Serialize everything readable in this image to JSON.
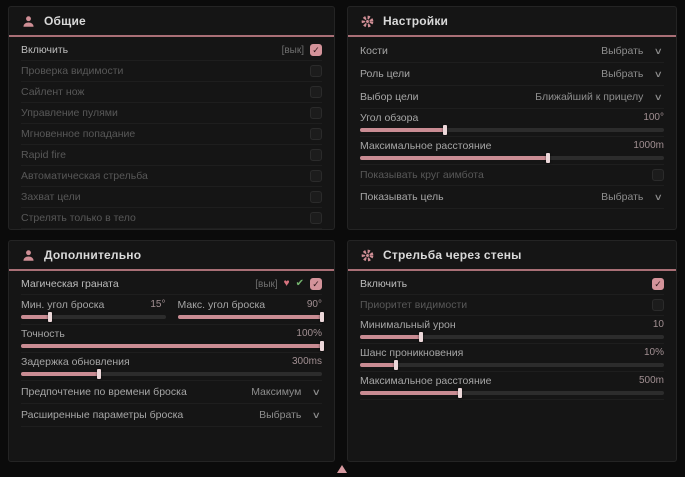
{
  "colors": {
    "accent": "#cf8e95",
    "header_underline": "#a96f76",
    "checkbox_checked": "#d4939a",
    "slider_fill": "#c98c93",
    "heart_icon": "#d8737f",
    "check_icon": "#74b56e"
  },
  "glyphs": {
    "check": "✓",
    "chevron": "∨",
    "heart": "♥",
    "leaf_check": "✔"
  },
  "panels": [
    {
      "title": "Общие",
      "icon": "person-icon",
      "rows": [
        {
          "type": "toggle",
          "label": "Включить",
          "tag": "[вык]",
          "checked": true,
          "dim": false
        },
        {
          "type": "toggle",
          "label": "Проверка видимости",
          "checked": false,
          "dim": true
        },
        {
          "type": "toggle",
          "label": "Сайлент нож",
          "checked": false,
          "dim": true
        },
        {
          "type": "toggle",
          "label": "Управление пулями",
          "checked": false,
          "dim": true
        },
        {
          "type": "toggle",
          "label": "Мгновенное попадание",
          "checked": false,
          "dim": true
        },
        {
          "type": "toggle",
          "label": "Rapid fire",
          "checked": false,
          "dim": true
        },
        {
          "type": "toggle",
          "label": "Автоматическая стрельба",
          "checked": false,
          "dim": true
        },
        {
          "type": "toggle",
          "label": "Захват цели",
          "checked": false,
          "dim": true
        },
        {
          "type": "toggle",
          "label": "Стрелять только в тело",
          "checked": false,
          "dim": true
        }
      ]
    },
    {
      "title": "Настройки",
      "icon": "gear-icon",
      "rows": [
        {
          "type": "dropdown",
          "label": "Кости",
          "value": "Выбрать"
        },
        {
          "type": "dropdown",
          "label": "Роль цели",
          "value": "Выбрать"
        },
        {
          "type": "dropdown",
          "label": "Выбор цели",
          "value": "Ближайший к прицелу"
        },
        {
          "type": "slider",
          "label": "Угол обзора",
          "value": "100°",
          "fill": 0.28
        },
        {
          "type": "slider",
          "label": "Максимальное расстояние",
          "value": "1000m",
          "fill": 0.62
        },
        {
          "type": "toggle",
          "label": "Показывать круг аимбота",
          "checked": false,
          "dim": true
        },
        {
          "type": "dropdown",
          "label": "Показывать цель",
          "value": "Выбрать"
        }
      ]
    },
    {
      "title": "Дополнительно",
      "icon": "person-icon",
      "rows": [
        {
          "type": "toggle",
          "label": "Магическая граната",
          "tag": "[вык]",
          "icons": [
            "heart-icon",
            "check-icon"
          ],
          "checked": true,
          "dim": false
        },
        {
          "type": "sliderpair",
          "items": [
            {
              "label": "Мин. угол броска",
              "value": "15°",
              "fill": 0.2
            },
            {
              "label": "Макс. угол броска",
              "value": "90°",
              "fill": 1.0
            }
          ]
        },
        {
          "type": "slider",
          "label": "Точность",
          "value": "100%",
          "fill": 1.0
        },
        {
          "type": "slider",
          "label": "Задержка обновления",
          "value": "300ms",
          "fill": 0.26
        },
        {
          "type": "dropdown",
          "label": "Предпочтение по времени броска",
          "value": "Максимум"
        },
        {
          "type": "dropdown",
          "label": "Расширенные параметры броска",
          "value": "Выбрать"
        }
      ]
    },
    {
      "title": "Стрельба через стены",
      "icon": "gear-icon",
      "rows": [
        {
          "type": "toggle",
          "label": "Включить",
          "checked": true,
          "dim": false
        },
        {
          "type": "toggle",
          "label": "Приоритет видимости",
          "checked": false,
          "dim": true
        },
        {
          "type": "slider",
          "label": "Минимальный урон",
          "value": "10",
          "fill": 0.2
        },
        {
          "type": "slider",
          "label": "Шанс проникновения",
          "value": "10%",
          "fill": 0.12
        },
        {
          "type": "slider",
          "label": "Максимальное расстояние",
          "value": "500m",
          "fill": 0.33
        }
      ]
    }
  ]
}
